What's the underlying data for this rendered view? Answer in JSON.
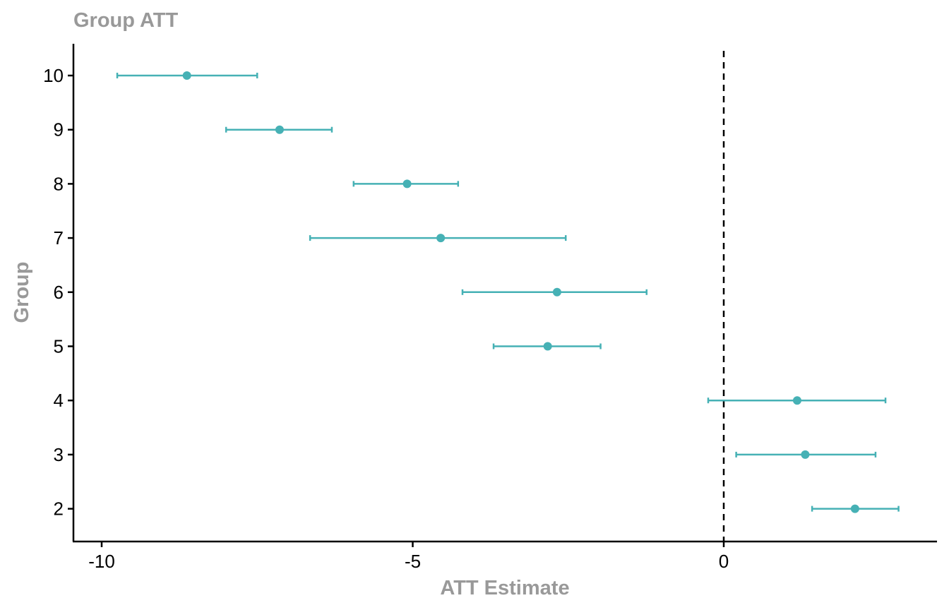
{
  "chart_data": {
    "type": "errorbar",
    "title": "Group ATT",
    "xlabel": "ATT Estimate",
    "ylabel": "Group",
    "xlim": [
      -10.25,
      3.42
    ],
    "x_ticks": [
      -10,
      -5,
      0
    ],
    "x_tick_labels": [
      "-10",
      "-5",
      "0"
    ],
    "categories": [
      "2",
      "3",
      "4",
      "5",
      "6",
      "7",
      "8",
      "9",
      "10"
    ],
    "reference_line": {
      "x": 0,
      "style": "dashed"
    },
    "grid": false,
    "points": [
      {
        "group": "10",
        "estimate": -8.63,
        "lower": -9.75,
        "upper": -7.5
      },
      {
        "group": "9",
        "estimate": -7.14,
        "lower": -8.0,
        "upper": -6.3
      },
      {
        "group": "8",
        "estimate": -5.09,
        "lower": -5.95,
        "upper": -4.27
      },
      {
        "group": "7",
        "estimate": -4.55,
        "lower": -6.65,
        "upper": -2.54
      },
      {
        "group": "6",
        "estimate": -2.68,
        "lower": -4.2,
        "upper": -1.24
      },
      {
        "group": "5",
        "estimate": -2.83,
        "lower": -3.7,
        "upper": -1.98
      },
      {
        "group": "4",
        "estimate": 1.18,
        "lower": -0.25,
        "upper": 2.6
      },
      {
        "group": "3",
        "estimate": 1.31,
        "lower": 0.2,
        "upper": 2.44
      },
      {
        "group": "2",
        "estimate": 2.11,
        "lower": 1.42,
        "upper": 2.81
      }
    ]
  },
  "colors": {
    "point": "#46b1b5",
    "axis": "#000000",
    "title": "#999999",
    "reference_line": "#000000"
  }
}
